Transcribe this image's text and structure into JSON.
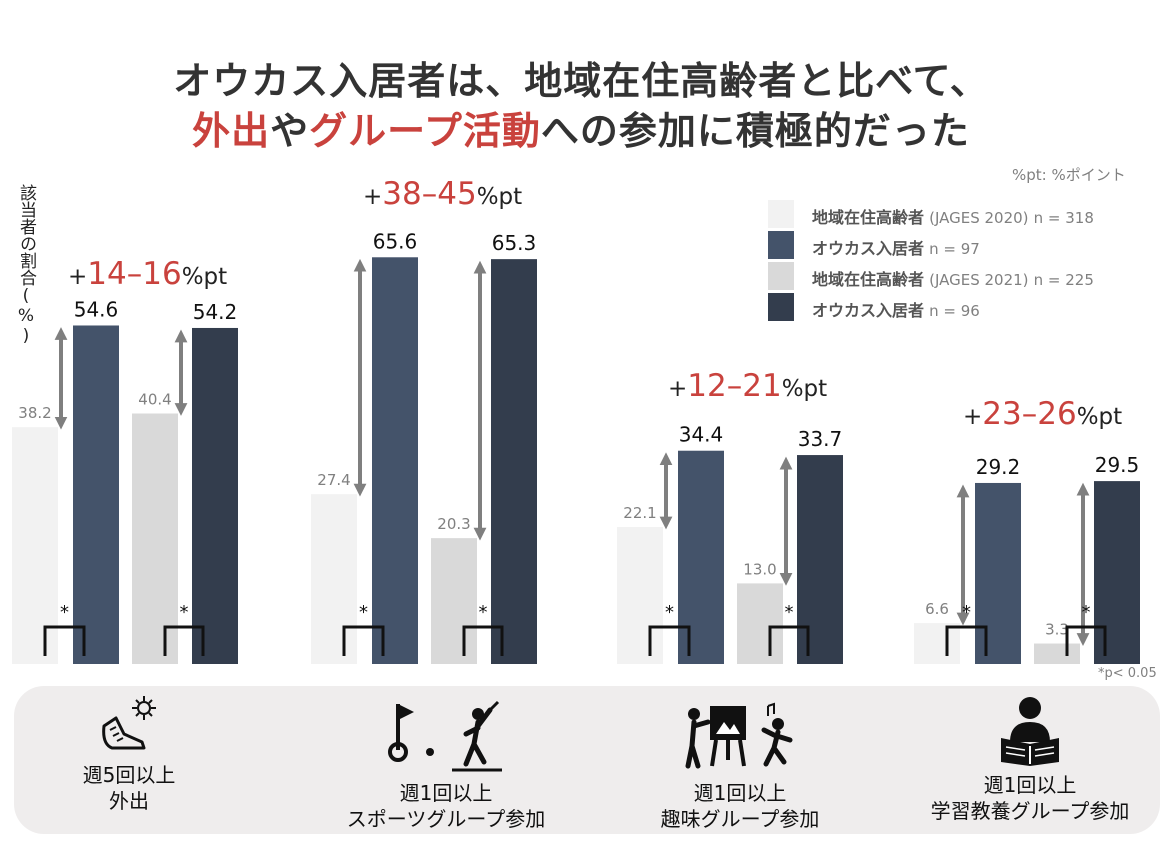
{
  "title": {
    "line1": "オウカス入居者は、地域在住高齢者と比べて、",
    "line2_red1": "外出",
    "line2_mid1": "や",
    "line2_red2": "グループ活動",
    "line2_end": "への参加に積極的だった"
  },
  "unit_note": "%pt: %ポイント",
  "y_axis_label": "該当者の割合(%)",
  "legend": [
    {
      "name": "地域在住高齢者",
      "source": "(JAGES 2020)",
      "n": "n = 318",
      "color": "#f2f2f2"
    },
    {
      "name": "オウカス入居者",
      "source": "",
      "n": "n = 97",
      "color": "#44536a"
    },
    {
      "name": "地域在住高齢者",
      "source": "(JAGES 2021)",
      "n": "n = 225",
      "color": "#d9d9d9"
    },
    {
      "name": "オウカス入居者",
      "source": "",
      "n": "n = 96",
      "color": "#333d4d"
    }
  ],
  "significance_note": "*p< 0.05",
  "chart_data": {
    "type": "bar",
    "ylabel": "該当者の割合(%)",
    "ylim": [
      0,
      70
    ],
    "categories": [
      "週5回以上 外出",
      "週1回以上 スポーツグループ参加",
      "週1回以上 趣味グループ参加",
      "週1回以上 学習教養グループ参加"
    ],
    "series": [
      {
        "name": "地域在住高齢者 (JAGES 2020) n = 318",
        "values": [
          38.2,
          27.4,
          22.1,
          6.6
        ],
        "labels": [
          "38.2",
          "27.4",
          "22.1",
          "6.6"
        ],
        "color": "#f2f2f2"
      },
      {
        "name": "オウカス入居者 n = 97",
        "values": [
          54.6,
          65.6,
          34.4,
          29.2
        ],
        "labels": [
          "54.6",
          "65.6",
          "34.4",
          "29.2"
        ],
        "color": "#44536a"
      },
      {
        "name": "地域在住高齢者 (JAGES 2021) n = 225",
        "values": [
          40.4,
          20.3,
          13.0,
          3.3
        ],
        "labels": [
          "40.4",
          "20.3",
          "13.0",
          "3.3"
        ],
        "color": "#d9d9d9"
      },
      {
        "name": "オウカス入居者 n = 96",
        "values": [
          54.2,
          65.3,
          33.7,
          29.5
        ],
        "labels": [
          "54.2",
          "65.3",
          "33.7",
          "29.5"
        ],
        "color": "#333d4d"
      }
    ],
    "differences": [
      {
        "prefix": "+",
        "range": "14–16",
        "unit": "%pt"
      },
      {
        "prefix": "+",
        "range": "38–45",
        "unit": "%pt"
      },
      {
        "prefix": "+",
        "range": "12–21",
        "unit": "%pt"
      },
      {
        "prefix": "+",
        "range": "23–26",
        "unit": "%pt"
      }
    ],
    "significance_marker": "*"
  },
  "activities": [
    {
      "line1": "週5回以上",
      "line2": "外出",
      "icon": "walking-shoe-sun-icon"
    },
    {
      "line1": "週1回以上",
      "line2": "スポーツグループ参加",
      "icon": "golf-flag-player-icon"
    },
    {
      "line1": "週1回以上",
      "line2": "趣味グループ参加",
      "icon": "painting-easel-dancer-icon"
    },
    {
      "line1": "週1回以上",
      "line2": "学習教養グループ参加",
      "icon": "reading-book-icon"
    }
  ]
}
